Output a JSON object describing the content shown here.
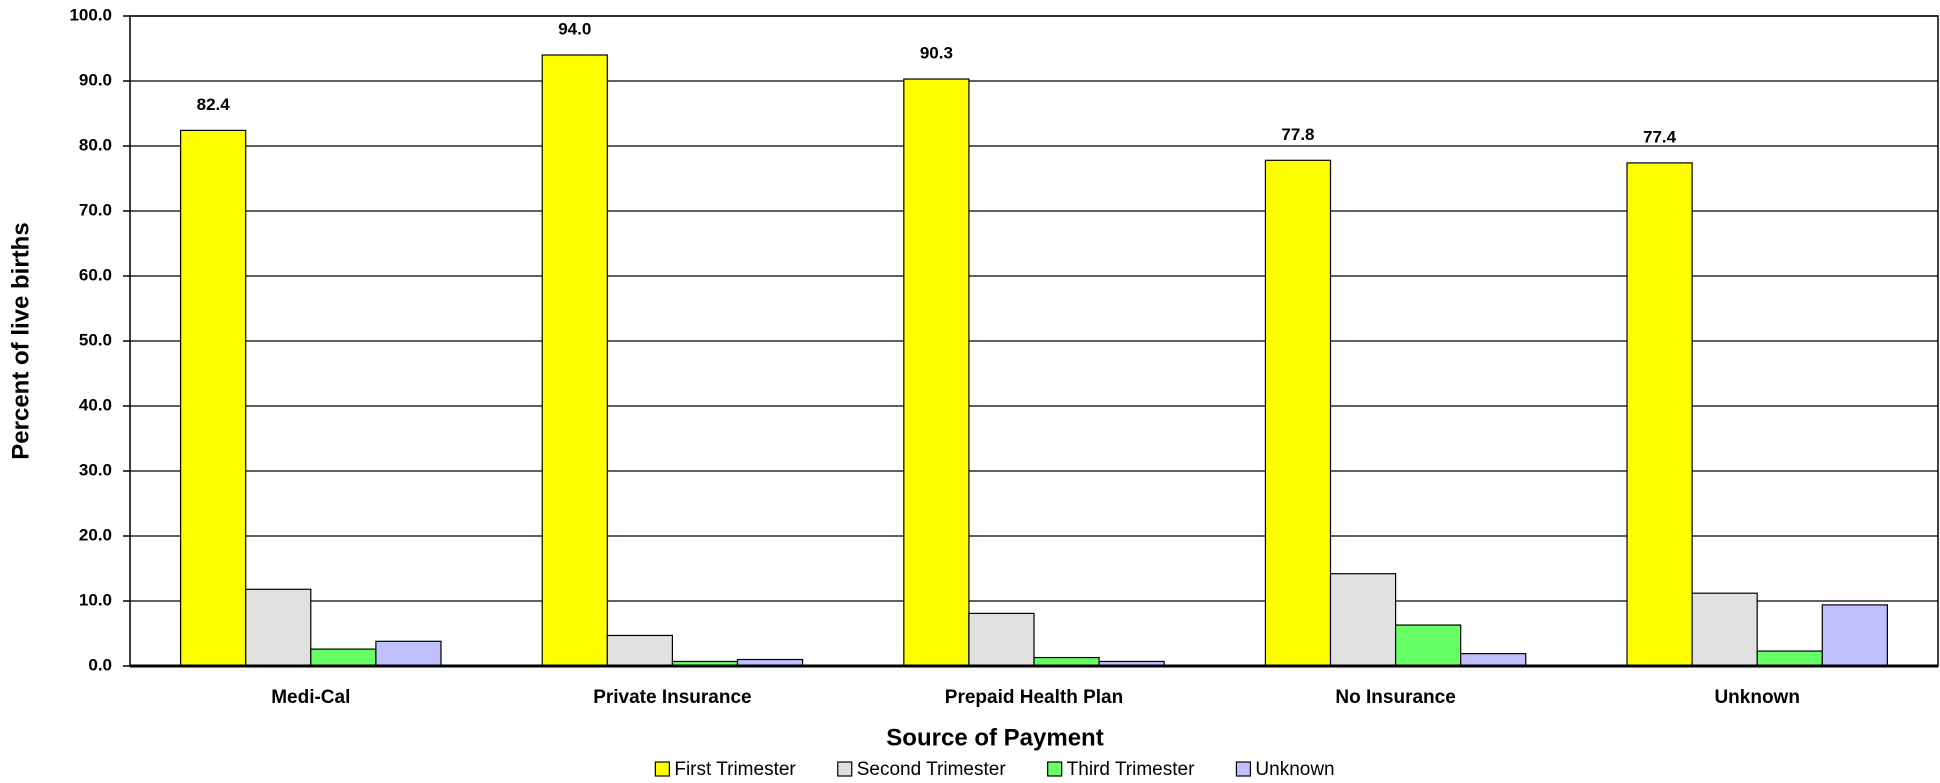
{
  "chart_data": {
    "type": "bar",
    "x_label": "Source of Payment",
    "y_label": "Percent of live births",
    "categories": [
      "Medi-Cal",
      "Private Insurance",
      "Prepaid Health Plan",
      "No Insurance",
      "Unknown"
    ],
    "series": [
      {
        "name": "First Trimester",
        "color": "#ffff00",
        "values": [
          82.4,
          94.0,
          90.3,
          77.8,
          77.4
        ],
        "value_labels": [
          "82.4",
          "94.0",
          "90.3",
          "77.8",
          "77.4"
        ]
      },
      {
        "name": "Second Trimester",
        "color": "#e0e0e0",
        "values": [
          11.8,
          4.7,
          8.1,
          14.2,
          11.2
        ]
      },
      {
        "name": "Third Trimester",
        "color": "#66ff66",
        "values": [
          2.6,
          0.7,
          1.3,
          6.3,
          2.3
        ]
      },
      {
        "name": "Unknown",
        "color": "#c0c0ff",
        "values": [
          3.8,
          1.0,
          0.7,
          1.9,
          9.4
        ]
      }
    ],
    "ylim": [
      0,
      100
    ],
    "yticks": [
      {
        "value": 0,
        "label": "0.0"
      },
      {
        "value": 10,
        "label": "10.0"
      },
      {
        "value": 20,
        "label": "20.0"
      },
      {
        "value": 30,
        "label": "30.0"
      },
      {
        "value": 40,
        "label": "40.0"
      },
      {
        "value": 50,
        "label": "50.0"
      },
      {
        "value": 60,
        "label": "60.0"
      },
      {
        "value": 70,
        "label": "70.0"
      },
      {
        "value": 80,
        "label": "80.0"
      },
      {
        "value": 90,
        "label": "90.0"
      },
      {
        "value": 100,
        "label": "100.0"
      }
    ],
    "grid": true,
    "legend": "bottom"
  }
}
